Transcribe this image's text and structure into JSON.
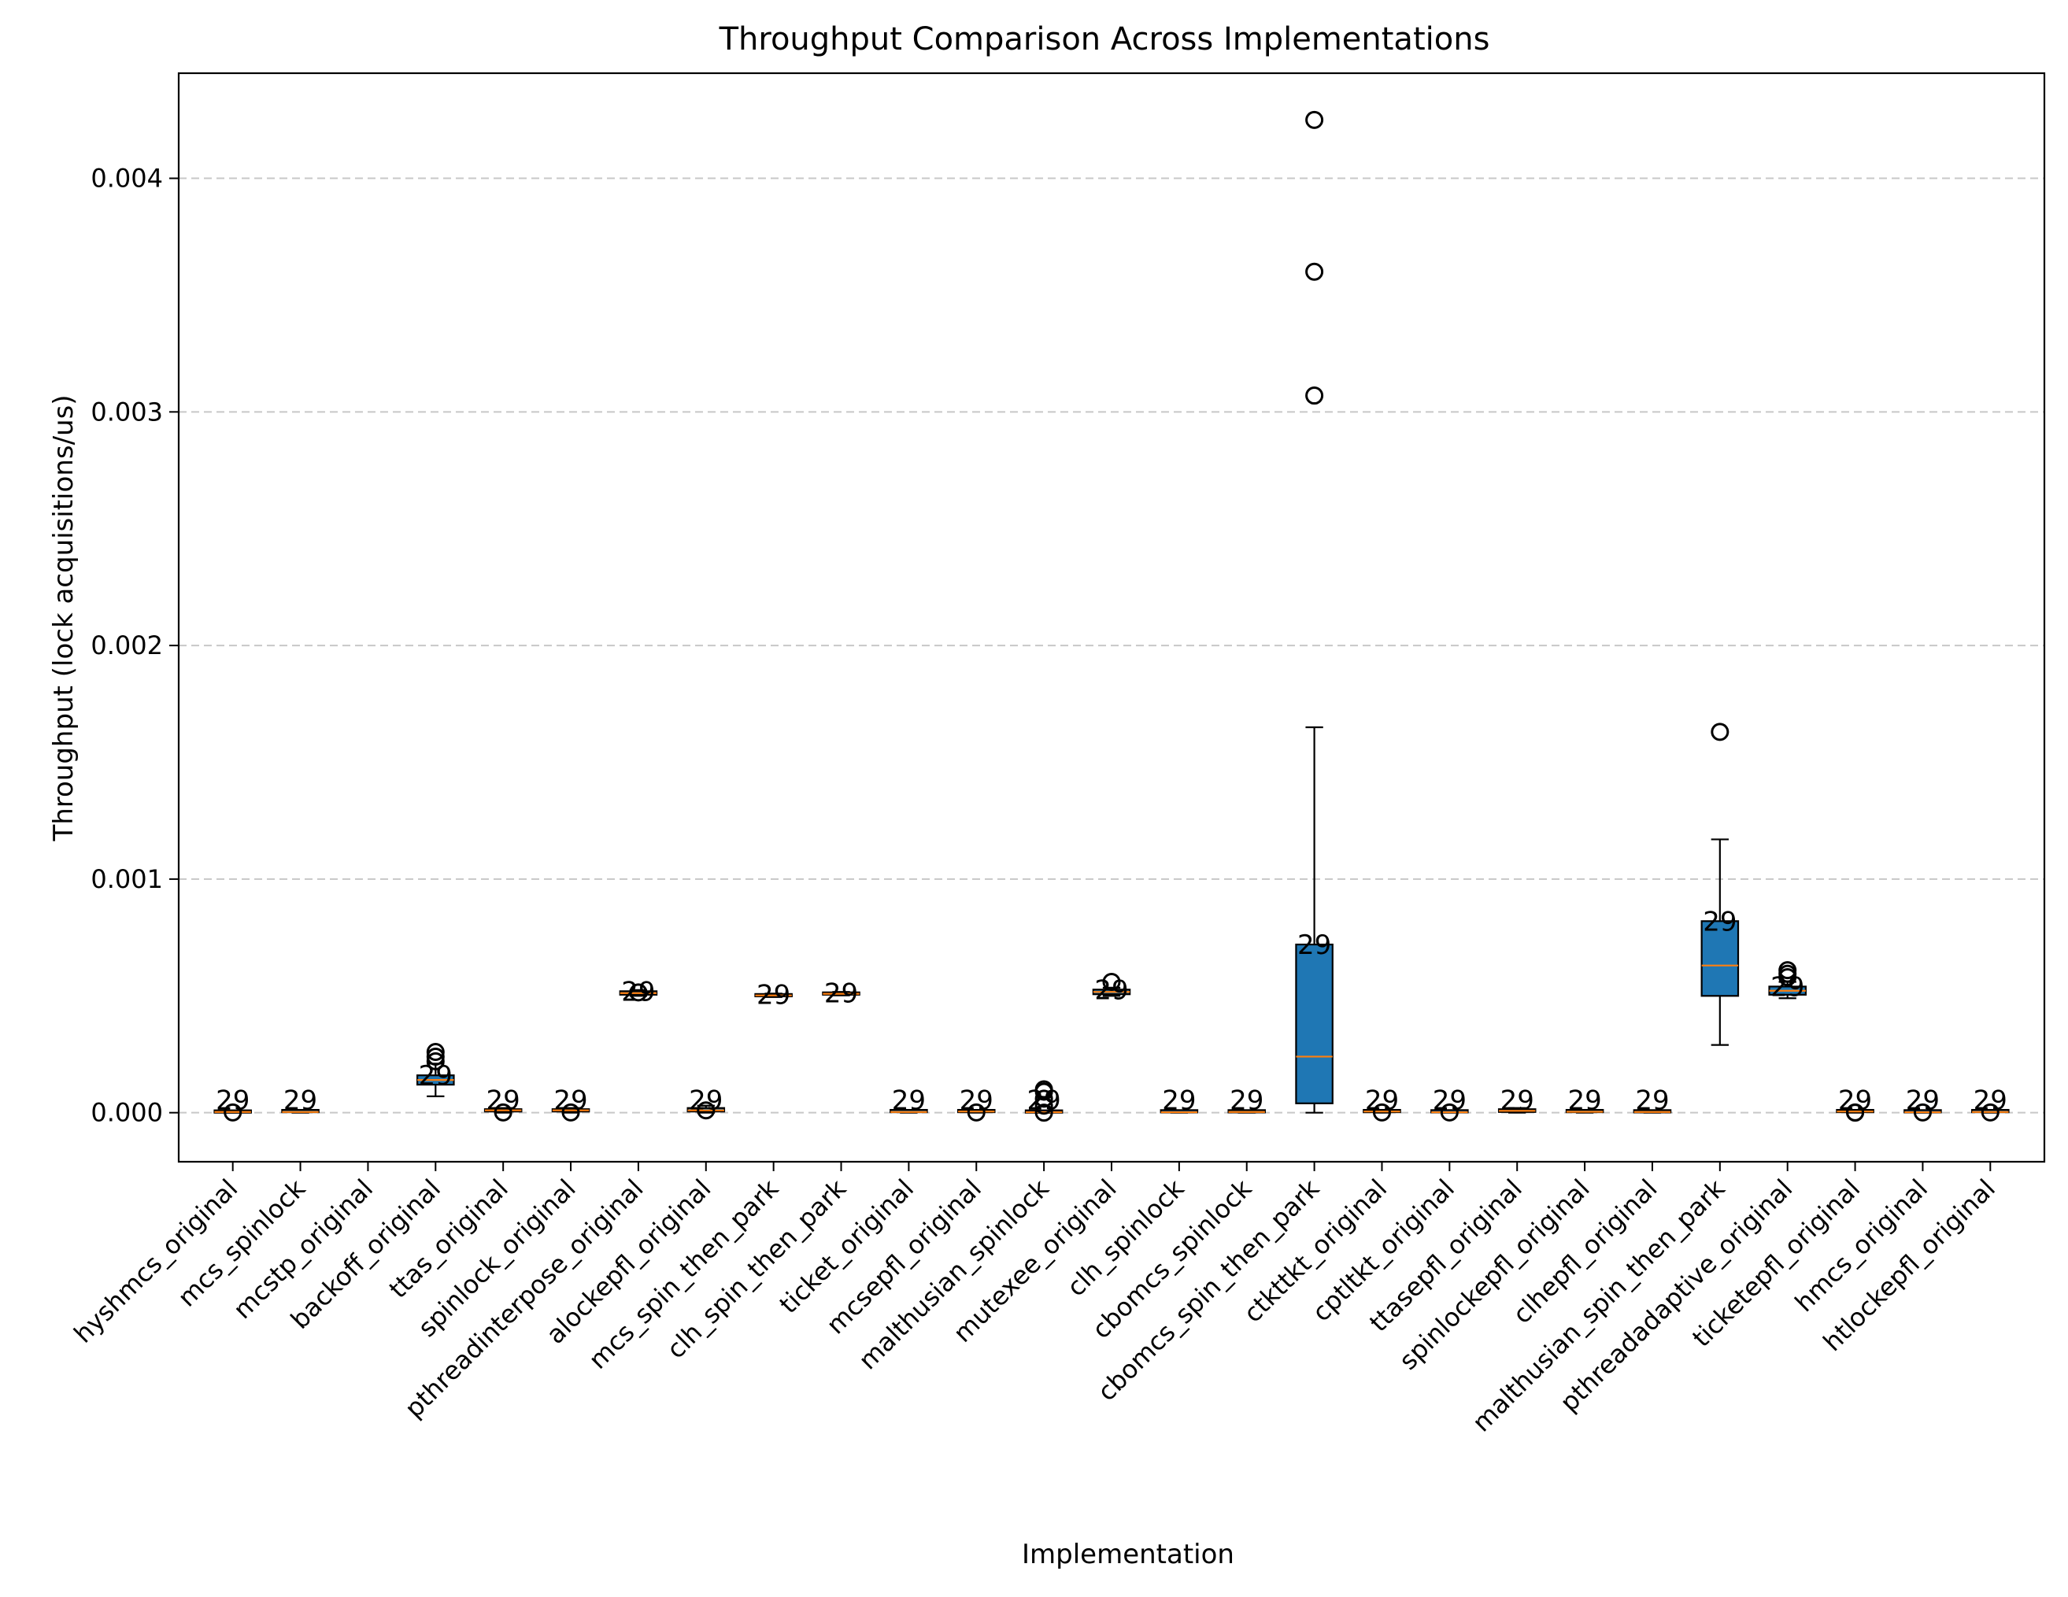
{
  "chart_data": {
    "type": "box",
    "title": "Throughput Comparison Across Implementations",
    "xlabel": "Implementation",
    "ylabel": "Throughput (lock acquisitions/us)",
    "ylim": [
      -0.00021,
      0.00445
    ],
    "yticks": [
      0.0,
      0.001,
      0.002,
      0.003,
      0.004
    ],
    "ytick_labels": [
      "0.000",
      "0.001",
      "0.002",
      "0.003",
      "0.004"
    ],
    "grid": "horizontal dashed",
    "colors": {
      "box_fill": "#1f77b4",
      "median": "#ff7f0e",
      "grid": "#c8c8c8"
    },
    "categories": [
      "hyshmcs_original",
      "mcs_spinlock",
      "mcstp_original",
      "backoff_original",
      "ttas_original",
      "spinlock_original",
      "pthreadinterpose_original",
      "alockepfl_original",
      "mcs_spin_then_park",
      "clh_spin_then_park",
      "ticket_original",
      "mcsepfl_original",
      "malthusian_spinlock",
      "mutexee_original",
      "clh_spinlock",
      "cbomcs_spinlock",
      "cbomcs_spin_then_park",
      "ctkttkt_original",
      "cptltkt_original",
      "ttasepfl_original",
      "spinlockepfl_original",
      "clhepfl_original",
      "malthusian_spin_then_park",
      "pthreadadaptive_original",
      "ticketepfl_original",
      "hmcs_original",
      "htlockepfl_original"
    ],
    "boxes": [
      {
        "whislo": 0.0,
        "q1": 0.0,
        "med": 3e-06,
        "q3": 5e-06,
        "whishi": 8e-06,
        "fliers": [
          1e-06
        ],
        "n": "29"
      },
      {
        "whislo": 0.0,
        "q1": 2e-06,
        "med": 3e-06,
        "q3": 4e-06,
        "whishi": 5e-06,
        "fliers": [],
        "n": "29"
      },
      null,
      {
        "whislo": 7e-05,
        "q1": 0.00012,
        "med": 0.00014,
        "q3": 0.00016,
        "whishi": 0.00021,
        "fliers": [
          0.00022,
          0.00024,
          0.00026
        ],
        "n": "29"
      },
      {
        "whislo": 0.0,
        "q1": 5e-06,
        "med": 1e-05,
        "q3": 1.5e-05,
        "whishi": 2e-05,
        "fliers": [
          1e-06
        ],
        "n": "29"
      },
      {
        "whislo": 0.0,
        "q1": 5e-06,
        "med": 1e-05,
        "q3": 1.5e-05,
        "whishi": 2e-05,
        "fliers": [
          1e-06
        ],
        "n": "29"
      },
      {
        "whislo": 0.0005,
        "q1": 0.000505,
        "med": 0.000512,
        "q3": 0.00052,
        "whishi": 0.000525,
        "fliers": [
          0.000515
        ],
        "n": "29"
      },
      {
        "whislo": 0.0,
        "q1": 5e-06,
        "med": 1e-05,
        "q3": 2e-05,
        "whishi": 3e-05,
        "fliers": [
          1e-05
        ],
        "n": "29"
      },
      {
        "whislo": 0.000495,
        "q1": 0.000498,
        "med": 0.000502,
        "q3": 0.000506,
        "whishi": 0.00051,
        "fliers": [],
        "n": "29"
      },
      {
        "whislo": 0.000502,
        "q1": 0.000505,
        "med": 0.000509,
        "q3": 0.000513,
        "whishi": 0.000517,
        "fliers": [],
        "n": "29"
      },
      {
        "whislo": 0.0,
        "q1": 2e-06,
        "med": 3e-06,
        "q3": 5e-06,
        "whishi": 6e-06,
        "fliers": [],
        "n": "29"
      },
      {
        "whislo": 0.0,
        "q1": 2e-06,
        "med": 5e-06,
        "q3": 8e-06,
        "whishi": 1e-05,
        "fliers": [
          1e-06
        ],
        "n": "29"
      },
      {
        "whislo": 0.0,
        "q1": 0.0,
        "med": 2e-06,
        "q3": 5e-06,
        "whishi": 8e-06,
        "fliers": [
          0.0,
          3e-05,
          6e-05,
          9e-05,
          0.0001
        ],
        "n": "29"
      },
      {
        "whislo": 0.0005,
        "q1": 0.000507,
        "med": 0.000517,
        "q3": 0.000527,
        "whishi": 0.000535,
        "fliers": [
          0.00056
        ],
        "n": "29"
      },
      {
        "whislo": 0.0,
        "q1": 1e-06,
        "med": 2e-06,
        "q3": 3e-06,
        "whishi": 4e-06,
        "fliers": [],
        "n": "29"
      },
      {
        "whislo": 0.0,
        "q1": 1e-06,
        "med": 3e-06,
        "q3": 5e-06,
        "whishi": 6e-06,
        "fliers": [],
        "n": "29"
      },
      {
        "whislo": 0.0,
        "q1": 4e-05,
        "med": 0.00024,
        "q3": 0.00072,
        "whishi": 0.00165,
        "fliers": [
          0.00307,
          0.0036,
          0.00425
        ],
        "n": "29"
      },
      {
        "whislo": 0.0,
        "q1": 2e-06,
        "med": 5e-06,
        "q3": 8e-06,
        "whishi": 1e-05,
        "fliers": [
          1e-06
        ],
        "n": "29"
      },
      {
        "whislo": 0.0,
        "q1": 1e-06,
        "med": 2e-06,
        "q3": 3e-06,
        "whishi": 4e-06,
        "fliers": [
          1e-06
        ],
        "n": "29"
      },
      {
        "whislo": 0.0,
        "q1": 3e-06,
        "med": 8e-06,
        "q3": 1.5e-05,
        "whishi": 2e-05,
        "fliers": [],
        "n": "29"
      },
      {
        "whislo": 0.0,
        "q1": 2e-06,
        "med": 4e-06,
        "q3": 7e-06,
        "whishi": 1e-05,
        "fliers": [],
        "n": "29"
      },
      {
        "whislo": 0.0,
        "q1": 1e-06,
        "med": 3e-06,
        "q3": 5e-06,
        "whishi": 6e-06,
        "fliers": [],
        "n": "29"
      },
      {
        "whislo": 0.00029,
        "q1": 0.0005,
        "med": 0.00063,
        "q3": 0.00082,
        "whishi": 0.00117,
        "fliers": [
          0.00163
        ],
        "n": "29"
      },
      {
        "whislo": 0.00049,
        "q1": 0.000505,
        "med": 0.000522,
        "q3": 0.00054,
        "whishi": 0.00056,
        "fliers": [
          0.00058,
          0.000595,
          0.00061
        ],
        "n": "29"
      },
      {
        "whislo": 0.0,
        "q1": 2e-06,
        "med": 5e-06,
        "q3": 8e-06,
        "whishi": 1e-05,
        "fliers": [
          0.0,
          1e-06
        ],
        "n": "29"
      },
      {
        "whislo": 0.0,
        "q1": 1e-06,
        "med": 2e-06,
        "q3": 3e-06,
        "whishi": 4e-06,
        "fliers": [
          1e-06
        ],
        "n": "29"
      },
      {
        "whislo": 0.0,
        "q1": 2e-06,
        "med": 3e-06,
        "q3": 5e-06,
        "whishi": 6e-06,
        "fliers": [
          1e-06
        ],
        "n": "29"
      }
    ]
  }
}
